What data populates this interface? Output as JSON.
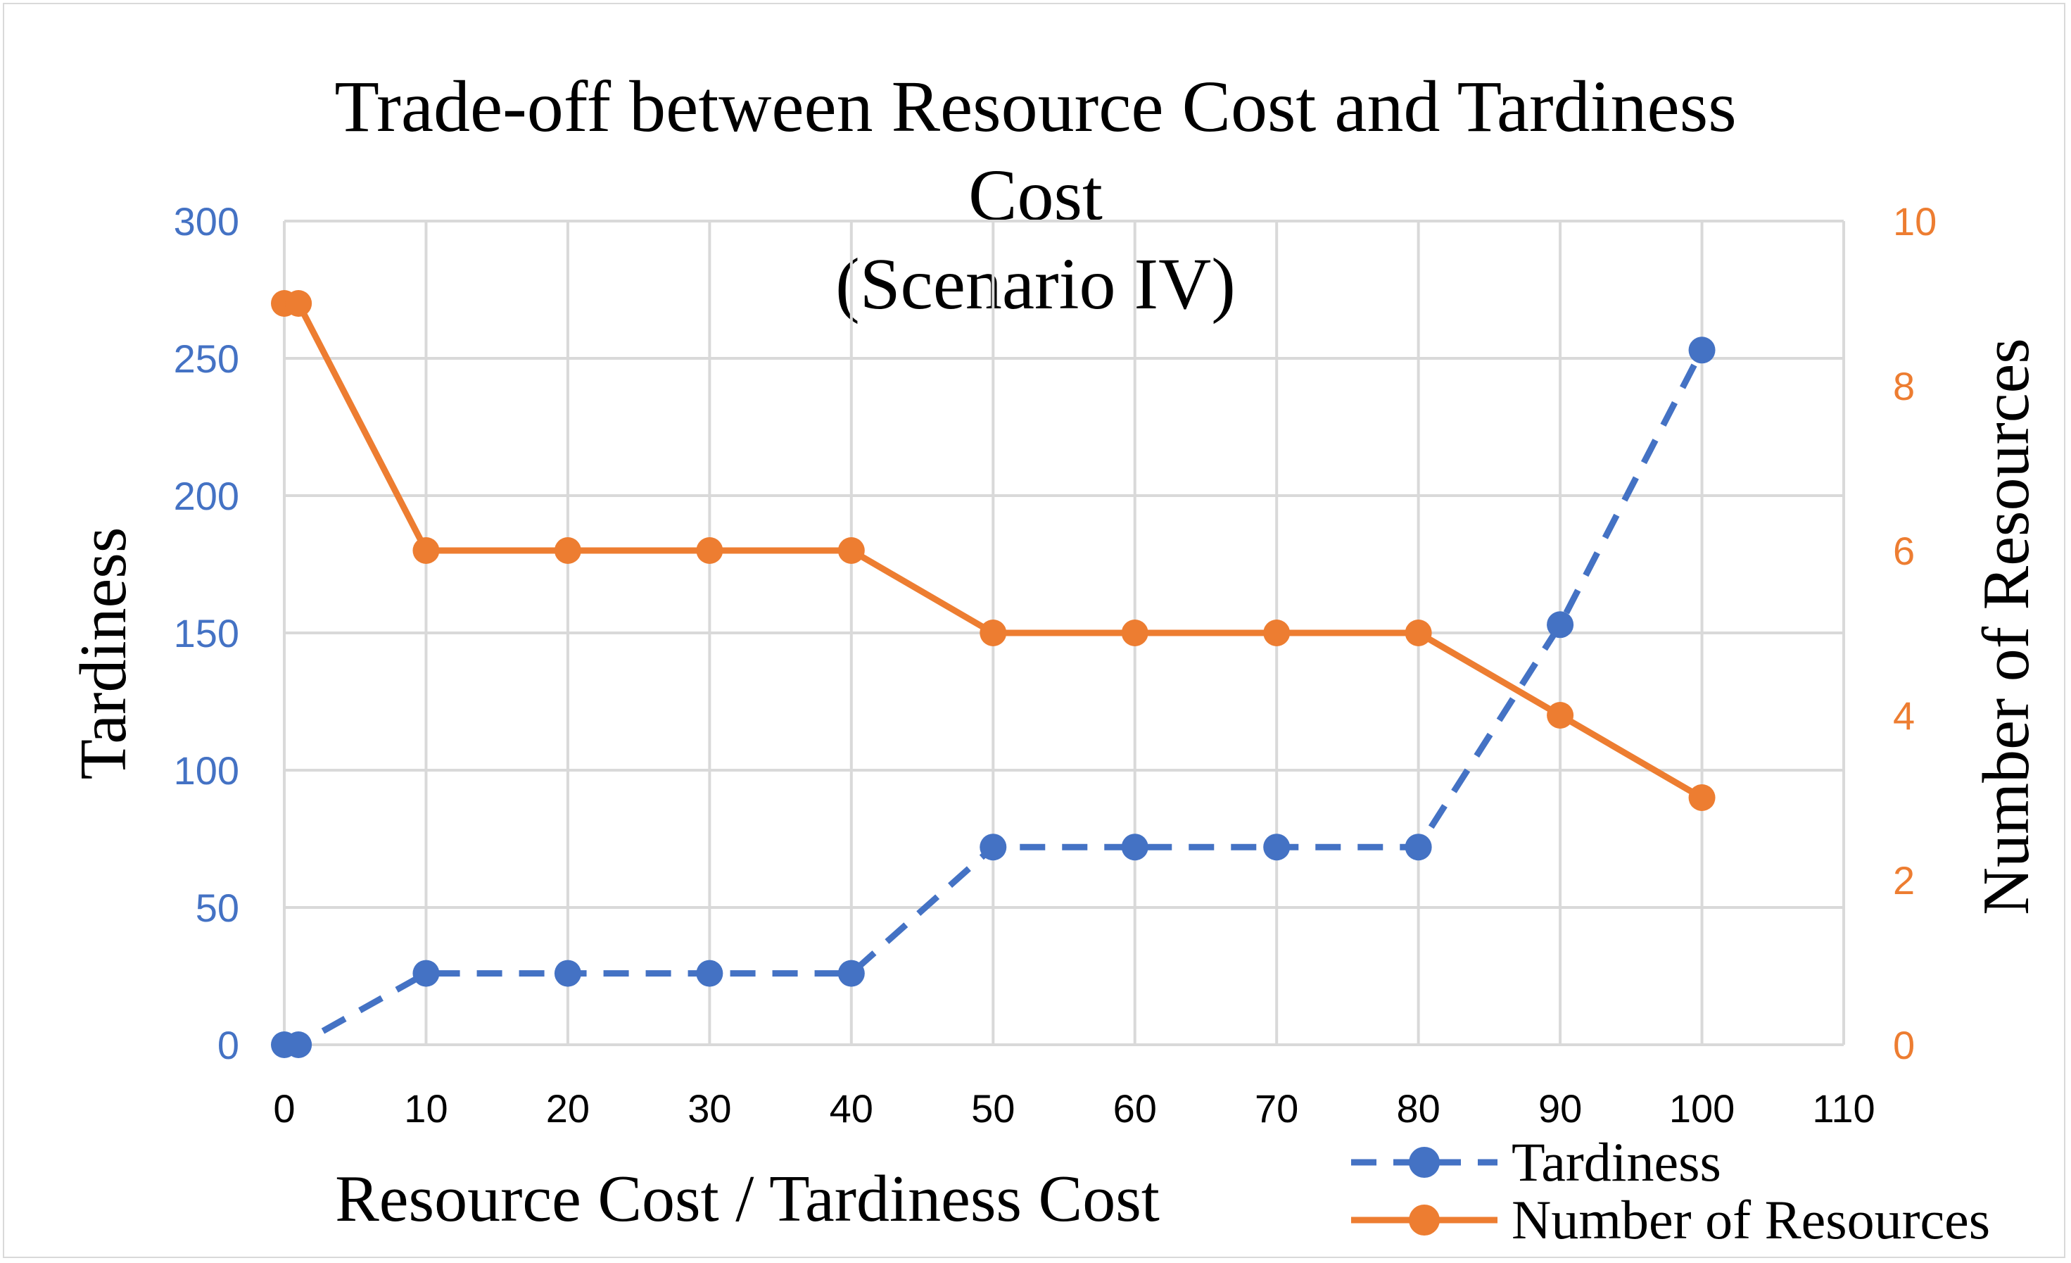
{
  "chart_data": {
    "type": "line",
    "title_lines": [
      "Trade-off between Resource Cost and Tardiness",
      "Cost",
      "(Scenario IV)"
    ],
    "xlabel": "Resource Cost / Tardiness Cost",
    "ylabel": "Tardiness",
    "y2label": "Number of Resources",
    "xlim": [
      0,
      110
    ],
    "ylim": [
      0,
      300
    ],
    "y2lim": [
      0,
      10
    ],
    "x_ticks": [
      "0",
      "10",
      "20",
      "30",
      "40",
      "50",
      "60",
      "70",
      "80",
      "90",
      "100",
      "110"
    ],
    "y_ticks": [
      "0",
      "50",
      "100",
      "150",
      "200",
      "250",
      "300"
    ],
    "y2_ticks": [
      "0",
      "2",
      "4",
      "6",
      "8",
      "10"
    ],
    "grid": true,
    "legend_position": "bottom-right",
    "series": [
      {
        "name": "Tardiness",
        "axis": "left",
        "style": "dashed",
        "color": "#4472c4",
        "x": [
          0,
          1,
          10,
          20,
          30,
          40,
          50,
          60,
          70,
          80,
          90,
          100
        ],
        "values": [
          0,
          0,
          26,
          26,
          26,
          26,
          72,
          72,
          72,
          72,
          153,
          253
        ]
      },
      {
        "name": "Number of Resources",
        "axis": "right",
        "style": "solid",
        "color": "#ed7d31",
        "x": [
          0,
          1,
          10,
          20,
          30,
          40,
          50,
          60,
          70,
          80,
          90,
          100
        ],
        "values": [
          9,
          9,
          6,
          6,
          6,
          6,
          5,
          5,
          5,
          5,
          4,
          3
        ]
      }
    ]
  }
}
